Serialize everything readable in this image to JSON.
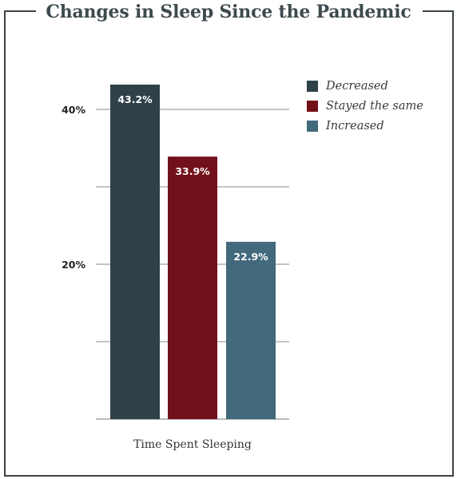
{
  "chart_data": {
    "type": "bar",
    "title": "Changes in Sleep Since the Pandemic",
    "xlabel": "Time Spent Sleeping",
    "ylabel": "",
    "categories": [
      "Decreased",
      "Stayed the same",
      "Increased"
    ],
    "values": [
      43.2,
      33.9,
      22.9
    ],
    "data_labels": [
      "43.2%",
      "33.9%",
      "22.9%"
    ],
    "colors": [
      "#2f4149",
      "#721119",
      "#43697c"
    ],
    "ylim": [
      0,
      45
    ],
    "yticks": [
      0,
      10,
      20,
      30,
      40
    ],
    "ytick_labels": [
      "",
      "",
      "20%",
      "",
      "40%"
    ],
    "grid": true,
    "legend_position": "top-right",
    "legend": [
      {
        "label": "Decreased",
        "color": "#2f4149"
      },
      {
        "label": "Stayed the same",
        "color": "#721119"
      },
      {
        "label": "Increased",
        "color": "#43697c"
      }
    ]
  }
}
